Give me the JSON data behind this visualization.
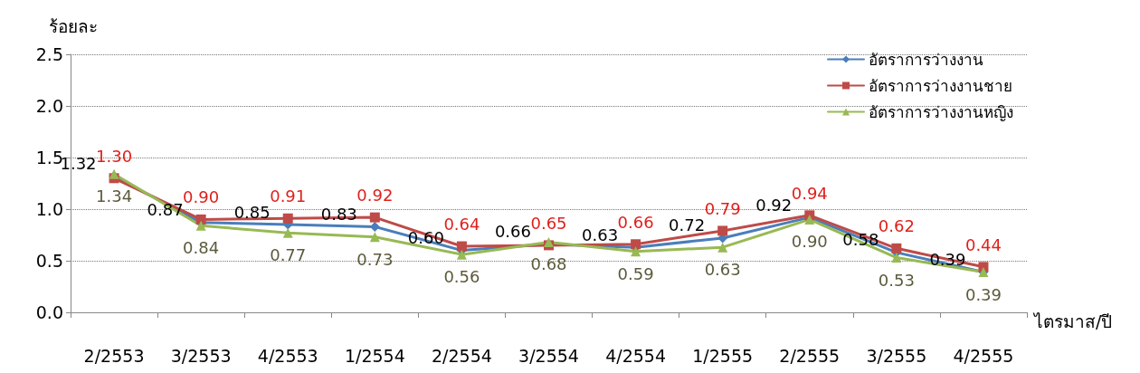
{
  "chart_data": {
    "type": "line",
    "ylabel": "ร้อยละ",
    "xlabel": "ไตรมาส/ปี",
    "categories": [
      "2/2553",
      "3/2553",
      "4/2553",
      "1/2554",
      "2/2554",
      "3/2554",
      "4/2554",
      "1/2555",
      "2/2555",
      "3/2555",
      "4/2555"
    ],
    "series": [
      {
        "name": "อัตราการว่างงาน",
        "color": "#4a7ebb",
        "marker": "diamond",
        "values": [
          1.32,
          0.87,
          0.85,
          0.83,
          0.6,
          0.66,
          0.63,
          0.72,
          0.92,
          0.58,
          0.39
        ],
        "value_labels": [
          "1.32",
          "0.87",
          "0.85",
          "0.83",
          "0.60",
          "0.66",
          "0.63",
          "0.72",
          "0.92",
          "0.58",
          "0.39"
        ]
      },
      {
        "name": "อัตราการว่างงานชาย",
        "color": "#be4b48",
        "marker": "square",
        "values": [
          1.3,
          0.9,
          0.91,
          0.92,
          0.64,
          0.65,
          0.66,
          0.79,
          0.94,
          0.62,
          0.44
        ],
        "value_labels": [
          "1.30",
          "0.90",
          "0.91",
          "0.92",
          "0.64",
          "0.65",
          "0.66",
          "0.79",
          "0.94",
          "0.62",
          "0.44"
        ]
      },
      {
        "name": "อัตราการว่างงานหญิง",
        "color": "#98b954",
        "marker": "triangle",
        "values": [
          1.34,
          0.84,
          0.77,
          0.73,
          0.56,
          0.68,
          0.59,
          0.63,
          0.9,
          0.53,
          0.39
        ],
        "value_labels": [
          "1.34",
          "0.84",
          "0.77",
          "0.73",
          "0.56",
          "0.68",
          "0.59",
          "0.63",
          "0.90",
          "0.53",
          "0.39"
        ]
      }
    ],
    "ylim": [
      0,
      2.5
    ],
    "yticks": [
      {
        "value": 0,
        "label": "0.0"
      },
      {
        "value": 0.5,
        "label": "0.5"
      },
      {
        "value": 1,
        "label": "1.0"
      },
      {
        "value": 1.5,
        "label": "1.5"
      },
      {
        "value": 2,
        "label": "2.0"
      },
      {
        "value": 2.5,
        "label": "2.5"
      }
    ],
    "grid": "y",
    "legend": "top right",
    "line_style": "solid"
  }
}
